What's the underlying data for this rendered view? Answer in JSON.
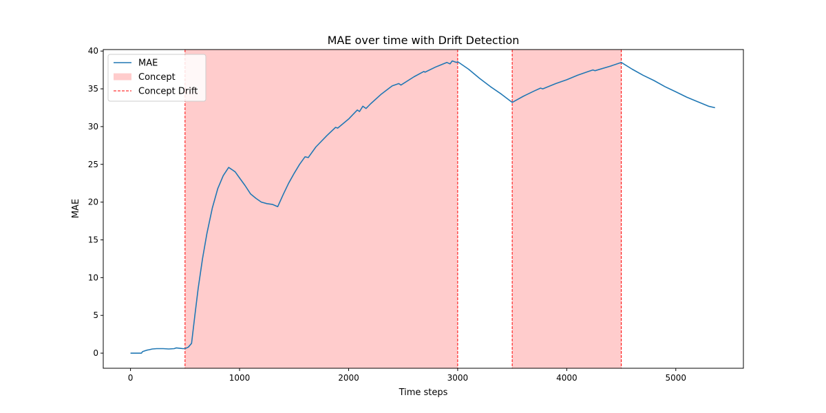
{
  "chart_data": {
    "type": "line",
    "title": "MAE over time with Drift Detection",
    "xlabel": "Time steps",
    "ylabel": "MAE",
    "xlim": [
      -250,
      5620
    ],
    "ylim": [
      -2,
      40.2
    ],
    "xticks": [
      0,
      1000,
      2000,
      3000,
      4000,
      5000
    ],
    "yticks": [
      0,
      5,
      10,
      15,
      20,
      25,
      30,
      35,
      40
    ],
    "grid": false,
    "legend": {
      "placement": "top-left",
      "entries": [
        {
          "label": "MAE",
          "kind": "line",
          "color": "#1f77b4"
        },
        {
          "label": "Concept",
          "kind": "patch",
          "color": "#ffcccc"
        },
        {
          "label": "Concept Drift",
          "kind": "dashed",
          "color": "#ff0000"
        }
      ]
    },
    "concept_regions": [
      {
        "x0": 500,
        "x1": 3000
      },
      {
        "x0": 3500,
        "x1": 4500
      }
    ],
    "drift_lines": [
      500,
      3000,
      3500,
      4500
    ],
    "series": [
      {
        "name": "MAE",
        "color": "#1f77b4",
        "x": [
          0,
          100,
          110,
          130,
          150,
          170,
          200,
          240,
          300,
          350,
          400,
          420,
          450,
          480,
          500,
          530,
          560,
          590,
          620,
          660,
          700,
          750,
          800,
          850,
          900,
          930,
          960,
          1000,
          1050,
          1100,
          1150,
          1200,
          1250,
          1300,
          1350,
          1400,
          1450,
          1500,
          1550,
          1600,
          1630,
          1640,
          1700,
          1800,
          1880,
          1900,
          2000,
          2080,
          2100,
          2130,
          2160,
          2200,
          2300,
          2400,
          2460,
          2480,
          2600,
          2690,
          2700,
          2800,
          2900,
          2930,
          2950,
          2990,
          3000,
          3100,
          3200,
          3300,
          3400,
          3500,
          3600,
          3700,
          3760,
          3780,
          3900,
          4000,
          4100,
          4200,
          4240,
          4260,
          4400,
          4500,
          4600,
          4700,
          4800,
          4900,
          5000,
          5100,
          5200,
          5300,
          5360
        ],
        "y": [
          0.0,
          0.0,
          0.2,
          0.3,
          0.4,
          0.45,
          0.55,
          0.6,
          0.6,
          0.55,
          0.6,
          0.7,
          0.65,
          0.6,
          0.6,
          0.8,
          1.3,
          5.0,
          8.5,
          12.5,
          15.8,
          19.2,
          21.8,
          23.5,
          24.6,
          24.3,
          24.0,
          23.2,
          22.2,
          21.1,
          20.5,
          20.0,
          19.8,
          19.7,
          19.4,
          21.0,
          22.5,
          23.8,
          25.0,
          26.0,
          25.9,
          26.1,
          27.3,
          28.8,
          29.9,
          29.8,
          31.0,
          32.2,
          32.0,
          32.7,
          32.4,
          33.0,
          34.3,
          35.4,
          35.7,
          35.5,
          36.6,
          37.3,
          37.2,
          37.9,
          38.5,
          38.3,
          38.7,
          38.5,
          38.6,
          37.6,
          36.4,
          35.3,
          34.3,
          33.2,
          34.0,
          34.7,
          35.1,
          35.0,
          35.7,
          36.2,
          36.8,
          37.3,
          37.5,
          37.4,
          38.0,
          38.5,
          37.6,
          36.8,
          36.1,
          35.3,
          34.6,
          33.9,
          33.3,
          32.7,
          32.5
        ]
      }
    ]
  }
}
